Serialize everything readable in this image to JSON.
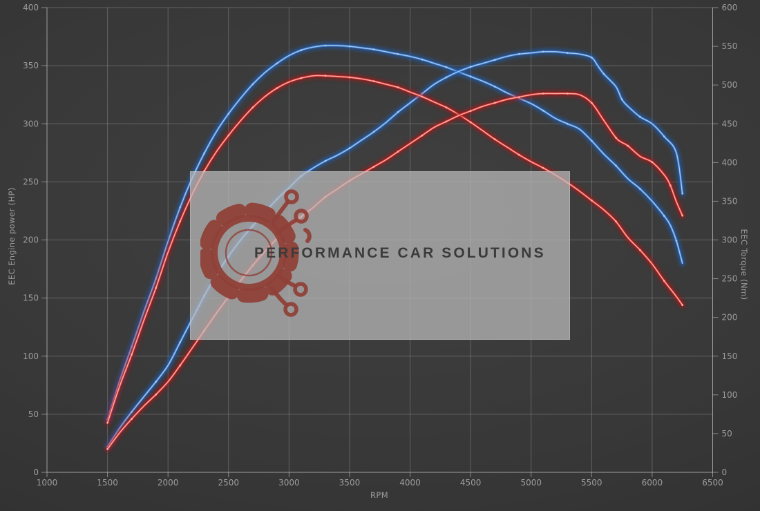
{
  "watermark": {
    "text": "PERFORMANCE CAR SOLUTIONS"
  },
  "colors": {
    "background": "#383838",
    "grid": "#d2d2d2",
    "axis_text": "#9c9c9c",
    "watermark_bg": "#b9b9b9",
    "watermark_text": "#3b3b3b",
    "logo_red": "#8f4038",
    "curve_blue": "#3a7bd0",
    "curve_red": "#d83030"
  },
  "chart_data": {
    "type": "line",
    "grid": true,
    "legend": "none",
    "x_axis": {
      "label": "RPM",
      "min": 1000,
      "max": 6500,
      "ticks": [
        1000,
        1500,
        2000,
        2500,
        3000,
        3500,
        4000,
        4500,
        5000,
        5500,
        6000,
        6500
      ]
    },
    "y_axis_left": {
      "label": "EEC Engine power (HP)",
      "min": 0,
      "max": 400,
      "ticks": [
        0,
        50,
        100,
        150,
        200,
        250,
        300,
        350,
        400
      ]
    },
    "y_axis_right": {
      "label": "EEC Torque (Nm)",
      "min": 0,
      "max": 600,
      "ticks": [
        0,
        50,
        100,
        150,
        200,
        250,
        300,
        350,
        400,
        450,
        500,
        550,
        600
      ]
    },
    "series": [
      {
        "name": "blue-torque",
        "axis": "right",
        "unit": "Nm",
        "glow": "#1d5fb8",
        "line": "#3a7bd0",
        "core": "#a5c8f0",
        "points": [
          [
            1500,
            68
          ],
          [
            1600,
            118
          ],
          [
            1700,
            162
          ],
          [
            1800,
            207
          ],
          [
            1900,
            250
          ],
          [
            2000,
            298
          ],
          [
            2100,
            342
          ],
          [
            2200,
            380
          ],
          [
            2300,
            412
          ],
          [
            2400,
            440
          ],
          [
            2500,
            463
          ],
          [
            2600,
            483
          ],
          [
            2700,
            501
          ],
          [
            2800,
            516
          ],
          [
            2900,
            528
          ],
          [
            3000,
            538
          ],
          [
            3100,
            545
          ],
          [
            3200,
            549
          ],
          [
            3300,
            551
          ],
          [
            3400,
            551
          ],
          [
            3500,
            550
          ],
          [
            3600,
            548
          ],
          [
            3700,
            546
          ],
          [
            3800,
            543
          ],
          [
            3900,
            540
          ],
          [
            4000,
            537
          ],
          [
            4100,
            533
          ],
          [
            4200,
            528
          ],
          [
            4300,
            523
          ],
          [
            4400,
            517
          ],
          [
            4500,
            511
          ],
          [
            4600,
            505
          ],
          [
            4700,
            498
          ],
          [
            4800,
            490
          ],
          [
            4900,
            483
          ],
          [
            5000,
            476
          ],
          [
            5100,
            467
          ],
          [
            5200,
            457
          ],
          [
            5300,
            450
          ],
          [
            5400,
            443
          ],
          [
            5500,
            428
          ],
          [
            5600,
            411
          ],
          [
            5700,
            396
          ],
          [
            5800,
            379
          ],
          [
            5900,
            366
          ],
          [
            6000,
            350
          ],
          [
            6100,
            331
          ],
          [
            6150,
            319
          ],
          [
            6200,
            299
          ],
          [
            6250,
            270
          ]
        ]
      },
      {
        "name": "blue-power",
        "axis": "left",
        "unit": "HP",
        "glow": "#1d5fb8",
        "line": "#3a7bd0",
        "core": "#a5c8f0",
        "points": [
          [
            1500,
            22
          ],
          [
            1600,
            38
          ],
          [
            1700,
            52
          ],
          [
            1800,
            65
          ],
          [
            1900,
            78
          ],
          [
            2000,
            92
          ],
          [
            2100,
            112
          ],
          [
            2200,
            132
          ],
          [
            2300,
            152
          ],
          [
            2400,
            170
          ],
          [
            2500,
            186
          ],
          [
            2600,
            200
          ],
          [
            2700,
            212
          ],
          [
            2800,
            224
          ],
          [
            2900,
            235
          ],
          [
            3000,
            245
          ],
          [
            3100,
            255
          ],
          [
            3200,
            262
          ],
          [
            3300,
            268
          ],
          [
            3400,
            273
          ],
          [
            3500,
            279
          ],
          [
            3600,
            286
          ],
          [
            3700,
            293
          ],
          [
            3800,
            301
          ],
          [
            3900,
            310
          ],
          [
            4000,
            318
          ],
          [
            4100,
            326
          ],
          [
            4200,
            334
          ],
          [
            4300,
            340
          ],
          [
            4400,
            345
          ],
          [
            4500,
            349
          ],
          [
            4600,
            352
          ],
          [
            4700,
            355
          ],
          [
            4800,
            358
          ],
          [
            4900,
            360
          ],
          [
            5000,
            361
          ],
          [
            5100,
            362
          ],
          [
            5200,
            362
          ],
          [
            5300,
            361
          ],
          [
            5400,
            360
          ],
          [
            5500,
            357
          ],
          [
            5550,
            350
          ],
          [
            5600,
            343
          ],
          [
            5700,
            332
          ],
          [
            5750,
            321
          ],
          [
            5800,
            315
          ],
          [
            5900,
            306
          ],
          [
            6000,
            300
          ],
          [
            6100,
            289
          ],
          [
            6200,
            275
          ],
          [
            6250,
            240
          ]
        ]
      },
      {
        "name": "red-torque",
        "axis": "right",
        "unit": "Nm",
        "glow": "#a81414",
        "line": "#d83030",
        "core": "#ffb0a8",
        "points": [
          [
            1500,
            64
          ],
          [
            1600,
            111
          ],
          [
            1700,
            152
          ],
          [
            1800,
            196
          ],
          [
            1900,
            238
          ],
          [
            2000,
            284
          ],
          [
            2100,
            324
          ],
          [
            2200,
            359
          ],
          [
            2300,
            389
          ],
          [
            2400,
            414
          ],
          [
            2500,
            435
          ],
          [
            2600,
            454
          ],
          [
            2700,
            471
          ],
          [
            2800,
            485
          ],
          [
            2900,
            496
          ],
          [
            3000,
            504
          ],
          [
            3100,
            509
          ],
          [
            3200,
            512
          ],
          [
            3300,
            512
          ],
          [
            3400,
            511
          ],
          [
            3500,
            510
          ],
          [
            3600,
            508
          ],
          [
            3700,
            505
          ],
          [
            3800,
            501
          ],
          [
            3900,
            497
          ],
          [
            4000,
            491
          ],
          [
            4100,
            485
          ],
          [
            4200,
            478
          ],
          [
            4300,
            471
          ],
          [
            4400,
            462
          ],
          [
            4500,
            452
          ],
          [
            4600,
            441
          ],
          [
            4700,
            430
          ],
          [
            4800,
            420
          ],
          [
            4900,
            410
          ],
          [
            5000,
            401
          ],
          [
            5100,
            393
          ],
          [
            5200,
            384
          ],
          [
            5300,
            374
          ],
          [
            5400,
            363
          ],
          [
            5500,
            351
          ],
          [
            5600,
            339
          ],
          [
            5700,
            324
          ],
          [
            5800,
            303
          ],
          [
            5900,
            287
          ],
          [
            6000,
            269
          ],
          [
            6100,
            247
          ],
          [
            6200,
            227
          ],
          [
            6250,
            216
          ]
        ]
      },
      {
        "name": "red-power",
        "axis": "left",
        "unit": "HP",
        "glow": "#a81414",
        "line": "#d83030",
        "core": "#ffb0a8",
        "points": [
          [
            1500,
            20
          ],
          [
            1600,
            34
          ],
          [
            1700,
            46
          ],
          [
            1800,
            57
          ],
          [
            1900,
            67
          ],
          [
            2000,
            78
          ],
          [
            2100,
            92
          ],
          [
            2200,
            107
          ],
          [
            2300,
            122
          ],
          [
            2400,
            137
          ],
          [
            2500,
            151
          ],
          [
            2600,
            165
          ],
          [
            2700,
            178
          ],
          [
            2800,
            190
          ],
          [
            2900,
            201
          ],
          [
            3000,
            211
          ],
          [
            3100,
            220
          ],
          [
            3200,
            228
          ],
          [
            3300,
            237
          ],
          [
            3400,
            244
          ],
          [
            3500,
            251
          ],
          [
            3600,
            257
          ],
          [
            3700,
            263
          ],
          [
            3800,
            269
          ],
          [
            3900,
            276
          ],
          [
            4000,
            283
          ],
          [
            4100,
            290
          ],
          [
            4200,
            297
          ],
          [
            4300,
            302
          ],
          [
            4400,
            307
          ],
          [
            4500,
            311
          ],
          [
            4600,
            315
          ],
          [
            4700,
            318
          ],
          [
            4800,
            321
          ],
          [
            4900,
            323
          ],
          [
            5000,
            325
          ],
          [
            5100,
            326
          ],
          [
            5200,
            326
          ],
          [
            5300,
            326
          ],
          [
            5400,
            325
          ],
          [
            5500,
            318
          ],
          [
            5600,
            303
          ],
          [
            5700,
            288
          ],
          [
            5750,
            284
          ],
          [
            5800,
            281
          ],
          [
            5900,
            272
          ],
          [
            6000,
            267
          ],
          [
            6100,
            256
          ],
          [
            6150,
            247
          ],
          [
            6200,
            233
          ],
          [
            6250,
            221
          ]
        ]
      }
    ]
  }
}
